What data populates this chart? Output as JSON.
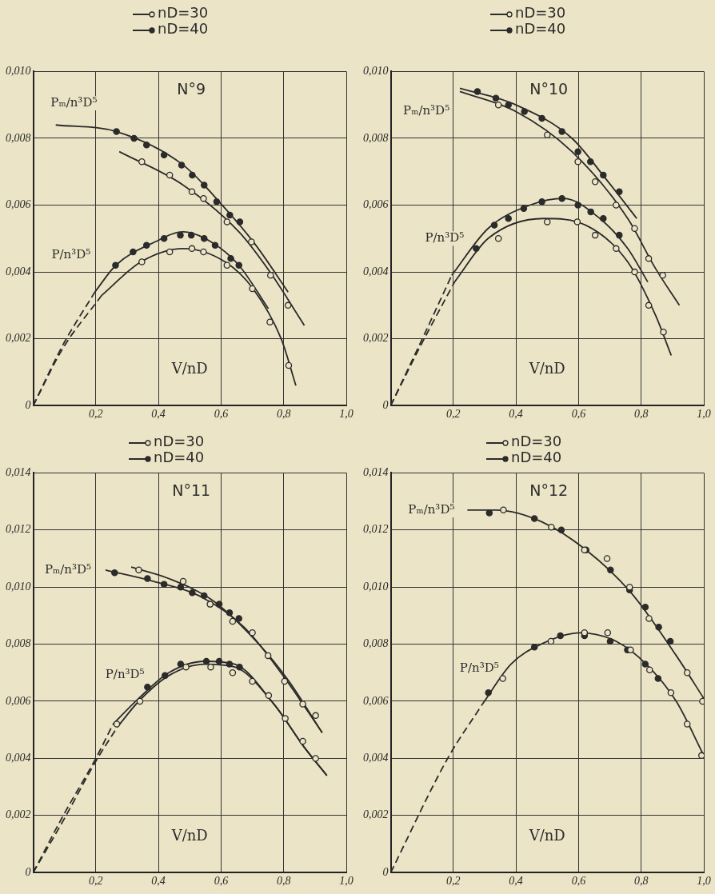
{
  "chart_data": [
    {
      "type": "line",
      "title": "N°9",
      "xlabel": "V/nD",
      "legend": "top",
      "grid": true,
      "marker": "circle",
      "xlim": [
        0,
        1
      ],
      "ylim": [
        0,
        0.01
      ],
      "xticks": [
        {
          "value": 0,
          "label": null
        },
        {
          "value": 0.2,
          "label": "0,2"
        },
        {
          "value": 0.4,
          "label": "0,4"
        },
        {
          "value": 0.6,
          "label": "0,6"
        },
        {
          "value": 0.8,
          "label": "0,8"
        },
        {
          "value": 1,
          "label": "1,0"
        }
      ],
      "yticks": [
        {
          "value": 0,
          "label": "0"
        },
        {
          "value": 0.002,
          "label": "0,002"
        },
        {
          "value": 0.004,
          "label": "0,004"
        },
        {
          "value": 0.006,
          "label": "0,006"
        },
        {
          "value": 0.008,
          "label": "0,008"
        },
        {
          "value": 0.01,
          "label": "0,010"
        }
      ],
      "annotations": [
        "Pₘ/n³D⁵",
        "P/n³D⁵"
      ],
      "series": [
        {
          "type": "scatter",
          "name": "nD=30",
          "color": "#2b2b2b",
          "x": [
            0.347,
            0.436,
            0.507,
            0.544,
            0.619,
            0.697,
            0.758,
            0.814,
            0.347,
            0.436,
            0.507,
            0.544,
            0.619,
            0.7,
            0.756,
            0.816
          ],
          "values": [
            0.0073,
            0.0069,
            0.0064,
            0.0062,
            0.0055,
            0.0049,
            0.0039,
            0.003,
            0.0043,
            0.0046,
            0.0047,
            0.0046,
            0.0042,
            0.0035,
            0.0025,
            0.0012
          ]
        },
        {
          "type": "scatter",
          "name": "nD=40",
          "color": "#2b2b2b",
          "x": [
            0.266,
            0.322,
            0.362,
            0.418,
            0.474,
            0.508,
            0.546,
            0.586,
            0.628,
            0.66,
            0.263,
            0.319,
            0.362,
            0.418,
            0.47,
            0.505,
            0.546,
            0.581,
            0.631,
            0.657
          ],
          "values": [
            0.0082,
            0.008,
            0.0078,
            0.0075,
            0.0072,
            0.0069,
            0.0066,
            0.0061,
            0.0057,
            0.0055,
            0.0042,
            0.0046,
            0.0048,
            0.005,
            0.0051,
            0.0051,
            0.005,
            0.0048,
            0.0044,
            0.0042
          ]
        },
        {
          "type": "line",
          "color": "#2b2b2b",
          "marker": "none",
          "line_style": "solid",
          "x": [
            0.072,
            0.266,
            0.479,
            0.613,
            0.711,
            0.814
          ],
          "values": [
            0.0084,
            0.0082,
            0.0072,
            0.0059,
            0.0048,
            0.0034
          ]
        },
        {
          "type": "line",
          "color": "#2b2b2b",
          "marker": "none",
          "line_style": "solid",
          "x": [
            0.275,
            0.479,
            0.657,
            0.756,
            0.866
          ],
          "values": [
            0.0076,
            0.0066,
            0.0052,
            0.004,
            0.0024
          ]
        },
        {
          "type": "line",
          "color": "#2b2b2b",
          "marker": "none",
          "line_style": "solid",
          "x": [
            0.197,
            0.264,
            0.389,
            0.479,
            0.568,
            0.657,
            0.751
          ],
          "values": [
            0.0034,
            0.0042,
            0.0049,
            0.0052,
            0.0049,
            0.0042,
            0.0029
          ]
        },
        {
          "type": "line",
          "color": "#2b2b2b",
          "marker": "none",
          "line_style": "dashed",
          "x": [
            0,
            0.094,
            0.197
          ],
          "values": [
            0,
            0.0018,
            0.0034
          ]
        },
        {
          "type": "line",
          "color": "#2b2b2b",
          "marker": "none",
          "line_style": "solid",
          "x": [
            0.219,
            0.344,
            0.479,
            0.613,
            0.702,
            0.792,
            0.839
          ],
          "values": [
            0.0033,
            0.0043,
            0.0047,
            0.0043,
            0.0035,
            0.002,
            0.0006
          ]
        },
        {
          "type": "line",
          "color": "#2b2b2b",
          "marker": "none",
          "line_style": "dashed",
          "x": [
            0,
            0.094,
            0.219
          ],
          "values": [
            0,
            0.0017,
            0.0033
          ]
        }
      ]
    },
    {
      "type": "line",
      "title": "N°10",
      "xlabel": "V/nD",
      "legend": "top",
      "grid": true,
      "marker": "circle",
      "xlim": [
        0,
        1
      ],
      "ylim": [
        0,
        0.01
      ],
      "xticks": [
        {
          "value": 0,
          "label": null
        },
        {
          "value": 0.2,
          "label": "0,2"
        },
        {
          "value": 0.4,
          "label": "0,4"
        },
        {
          "value": 0.6,
          "label": "0,6"
        },
        {
          "value": 0.8,
          "label": "0,8"
        },
        {
          "value": 1,
          "label": "1,0"
        }
      ],
      "yticks": [
        {
          "value": 0,
          "label": "0"
        },
        {
          "value": 0.002,
          "label": "0,002"
        },
        {
          "value": 0.004,
          "label": "0,004"
        },
        {
          "value": 0.006,
          "label": "0,006"
        },
        {
          "value": 0.008,
          "label": "0,008"
        },
        {
          "value": 0.01,
          "label": "0,010"
        }
      ],
      "annotations": [
        "Pₘ/n³D⁵",
        "P/n³D⁵"
      ],
      "series": [
        {
          "type": "scatter",
          "name": "nD=30",
          "color": "#2b2b2b",
          "x": [
            0.344,
            0.5,
            0.598,
            0.653,
            0.72,
            0.779,
            0.824,
            0.869,
            0.344,
            0.5,
            0.596,
            0.653,
            0.72,
            0.779,
            0.824,
            0.871
          ],
          "values": [
            0.009,
            0.0081,
            0.0073,
            0.0067,
            0.006,
            0.0053,
            0.0044,
            0.0039,
            0.005,
            0.0055,
            0.0055,
            0.0051,
            0.0047,
            0.004,
            0.003,
            0.0022
          ]
        },
        {
          "type": "scatter",
          "name": "nD=40",
          "color": "#2b2b2b",
          "x": [
            0.277,
            0.336,
            0.376,
            0.427,
            0.483,
            0.547,
            0.598,
            0.638,
            0.679,
            0.73,
            0.273,
            0.331,
            0.376,
            0.425,
            0.483,
            0.547,
            0.598,
            0.639,
            0.679,
            0.73
          ],
          "values": [
            0.0094,
            0.0092,
            0.009,
            0.0088,
            0.0086,
            0.0082,
            0.0076,
            0.0073,
            0.0069,
            0.0064,
            0.0047,
            0.0054,
            0.0056,
            0.0059,
            0.0061,
            0.0062,
            0.006,
            0.0058,
            0.0056,
            0.0051
          ]
        },
        {
          "type": "line",
          "color": "#2b2b2b",
          "marker": "none",
          "line_style": "solid",
          "x": [
            0.221,
            0.4,
            0.579,
            0.686,
            0.786
          ],
          "values": [
            0.0095,
            0.009,
            0.008,
            0.0068,
            0.0056
          ]
        },
        {
          "type": "line",
          "color": "#2b2b2b",
          "marker": "none",
          "line_style": "solid",
          "x": [
            0.221,
            0.4,
            0.579,
            0.757,
            0.846,
            0.922
          ],
          "values": [
            0.0094,
            0.0088,
            0.0076,
            0.0056,
            0.0041,
            0.003
          ]
        },
        {
          "type": "line",
          "color": "#2b2b2b",
          "marker": "none",
          "line_style": "solid",
          "x": [
            0.195,
            0.311,
            0.445,
            0.552,
            0.668,
            0.757,
            0.821
          ],
          "values": [
            0.0039,
            0.0053,
            0.006,
            0.0062,
            0.0056,
            0.0047,
            0.0037
          ]
        },
        {
          "type": "line",
          "color": "#2b2b2b",
          "marker": "none",
          "line_style": "dashed",
          "x": [
            0,
            0.096,
            0.195
          ],
          "values": [
            0,
            0.0019,
            0.0039
          ]
        },
        {
          "type": "line",
          "color": "#2b2b2b",
          "marker": "none",
          "line_style": "solid",
          "x": [
            0.204,
            0.311,
            0.489,
            0.623,
            0.757,
            0.846,
            0.896
          ],
          "values": [
            0.0037,
            0.005,
            0.0056,
            0.0054,
            0.0043,
            0.0027,
            0.0015
          ]
        },
        {
          "type": "line",
          "color": "#2b2b2b",
          "marker": "none",
          "line_style": "dashed",
          "x": [
            0,
            0.096,
            0.204
          ],
          "values": [
            0,
            0.0018,
            0.0037
          ]
        }
      ]
    },
    {
      "type": "line",
      "title": "N°11",
      "xlabel": "V/nD",
      "legend": "top",
      "grid": true,
      "marker": "circle",
      "xlim": [
        0,
        1
      ],
      "ylim": [
        0,
        0.014
      ],
      "xticks": [
        {
          "value": 0,
          "label": null
        },
        {
          "value": 0.2,
          "label": "0,2"
        },
        {
          "value": 0.4,
          "label": "0,4"
        },
        {
          "value": 0.6,
          "label": "0,6"
        },
        {
          "value": 0.8,
          "label": "0,8"
        },
        {
          "value": 1,
          "label": "1,0"
        }
      ],
      "yticks": [
        {
          "value": 0,
          "label": "0"
        },
        {
          "value": 0.002,
          "label": "0,002"
        },
        {
          "value": 0.004,
          "label": "0,004"
        },
        {
          "value": 0.006,
          "label": "0,006"
        },
        {
          "value": 0.008,
          "label": "0,008"
        },
        {
          "value": 0.01,
          "label": "0,010"
        },
        {
          "value": 0.012,
          "label": "0,012"
        },
        {
          "value": 0.014,
          "label": "0,014"
        }
      ],
      "annotations": [
        "Pₘ/n³D⁵",
        "P/n³D⁵"
      ],
      "series": [
        {
          "type": "scatter",
          "name": "nD=30",
          "color": "#2b2b2b",
          "x": [
            0.337,
            0.479,
            0.565,
            0.637,
            0.7,
            0.75,
            0.803,
            0.861,
            0.902,
            0.267,
            0.341,
            0.488,
            0.567,
            0.637,
            0.7,
            0.752,
            0.805,
            0.861,
            0.902
          ],
          "values": [
            0.0106,
            0.0102,
            0.0094,
            0.0088,
            0.0084,
            0.0076,
            0.0067,
            0.0059,
            0.0055,
            0.0052,
            0.006,
            0.0072,
            0.0072,
            0.007,
            0.0067,
            0.0062,
            0.0054,
            0.0046,
            0.004
          ]
        },
        {
          "type": "scatter",
          "name": "nD=40",
          "color": "#2b2b2b",
          "x": [
            0.26,
            0.365,
            0.418,
            0.471,
            0.508,
            0.546,
            0.594,
            0.627,
            0.657,
            0.365,
            0.421,
            0.471,
            0.553,
            0.594,
            0.627,
            0.659
          ],
          "values": [
            0.0105,
            0.0103,
            0.0101,
            0.01,
            0.0098,
            0.0097,
            0.0094,
            0.0091,
            0.0089,
            0.0065,
            0.0069,
            0.0073,
            0.0074,
            0.0074,
            0.0073,
            0.0072
          ]
        },
        {
          "type": "line",
          "color": "#2b2b2b",
          "marker": "none",
          "line_style": "solid",
          "x": [
            0.231,
            0.385,
            0.529,
            0.673,
            0.798,
            0.923
          ],
          "values": [
            0.0106,
            0.0102,
            0.0097,
            0.0086,
            0.0069,
            0.0049
          ]
        },
        {
          "type": "line",
          "color": "#2b2b2b",
          "marker": "none",
          "line_style": "solid",
          "x": [
            0.313,
            0.433,
            0.577,
            0.721,
            0.817,
            0.923
          ],
          "values": [
            0.0107,
            0.0103,
            0.0095,
            0.008,
            0.0067,
            0.0049
          ]
        },
        {
          "type": "line",
          "color": "#2b2b2b",
          "marker": "none",
          "line_style": "solid",
          "x": [
            0.255,
            0.337,
            0.433,
            0.548,
            0.644,
            0.769,
            0.865,
            0.938
          ],
          "values": [
            0.0052,
            0.0061,
            0.007,
            0.0074,
            0.0073,
            0.0059,
            0.0044,
            0.0034
          ]
        },
        {
          "type": "line",
          "color": "#2b2b2b",
          "marker": "none",
          "line_style": "dashed",
          "x": [
            0,
            0.096,
            0.2,
            0.255
          ],
          "values": [
            0,
            0.002,
            0.004,
            0.0052
          ]
        },
        {
          "type": "line",
          "color": "#2b2b2b",
          "marker": "none",
          "line_style": "solid",
          "x": [
            0.269,
            0.337,
            0.433,
            0.548,
            0.644,
            0.769,
            0.865,
            0.938
          ],
          "values": [
            0.0051,
            0.006,
            0.0069,
            0.0073,
            0.0072,
            0.0059,
            0.0044,
            0.0034
          ]
        },
        {
          "type": "line",
          "color": "#2b2b2b",
          "marker": "none",
          "line_style": "dashed",
          "x": [
            0,
            0.1,
            0.2,
            0.269
          ],
          "values": [
            0,
            0.0019,
            0.0039,
            0.0051
          ]
        }
      ]
    },
    {
      "type": "line",
      "title": "N°12",
      "xlabel": "V/nD",
      "legend": "top",
      "grid": true,
      "marker": "circle",
      "xlim": [
        0,
        1
      ],
      "ylim": [
        0,
        0.014
      ],
      "xticks": [
        {
          "value": 0,
          "label": null
        },
        {
          "value": 0.2,
          "label": "0,2"
        },
        {
          "value": 0.4,
          "label": "0,4"
        },
        {
          "value": 0.6,
          "label": "0,6"
        },
        {
          "value": 0.8,
          "label": "0,8"
        },
        {
          "value": 1,
          "label": "1,0"
        }
      ],
      "yticks": [
        {
          "value": 0,
          "label": "0"
        },
        {
          "value": 0.002,
          "label": "0,002"
        },
        {
          "value": 0.004,
          "label": "0,004"
        },
        {
          "value": 0.006,
          "label": "0,006"
        },
        {
          "value": 0.008,
          "label": "0,008"
        },
        {
          "value": 0.01,
          "label": "0,010"
        },
        {
          "value": 0.012,
          "label": "0,012"
        },
        {
          "value": 0.014,
          "label": "0,014"
        }
      ],
      "annotations": [
        "Pₘ/n³D⁵",
        "P/n³D⁵"
      ],
      "series": [
        {
          "type": "scatter",
          "name": "nD=30",
          "color": "#2b2b2b",
          "x": [
            0.36,
            0.513,
            0.619,
            0.691,
            0.763,
            0.825,
            0.947,
            0.996,
            0.358,
            0.512,
            0.619,
            0.693,
            0.766,
            0.827,
            0.895,
            0.947,
            0.993
          ],
          "values": [
            0.0127,
            0.0121,
            0.0113,
            0.011,
            0.01,
            0.0089,
            0.007,
            0.006,
            0.0068,
            0.0081,
            0.0084,
            0.0084,
            0.0078,
            0.0071,
            0.0063,
            0.0052,
            0.0041
          ]
        },
        {
          "type": "scatter",
          "name": "nD=40",
          "color": "#2b2b2b",
          "x": [
            0.315,
            0.459,
            0.545,
            0.624,
            0.702,
            0.763,
            0.813,
            0.856,
            0.893,
            0.312,
            0.459,
            0.542,
            0.619,
            0.701,
            0.756,
            0.813,
            0.854
          ],
          "values": [
            0.0126,
            0.0124,
            0.012,
            0.0113,
            0.0106,
            0.0099,
            0.0093,
            0.0086,
            0.0081,
            0.0063,
            0.0079,
            0.0083,
            0.0083,
            0.0081,
            0.0078,
            0.0073,
            0.0068
          ]
        },
        {
          "type": "line",
          "color": "#2b2b2b",
          "marker": "none",
          "line_style": "solid",
          "x": [
            0.245,
            0.336,
            0.48,
            0.624,
            0.768,
            0.912,
            1
          ],
          "values": [
            0.0127,
            0.0127,
            0.0123,
            0.0113,
            0.0098,
            0.0076,
            0.0061
          ]
        },
        {
          "type": "line",
          "color": "#2b2b2b",
          "marker": "none",
          "line_style": "solid",
          "x": [
            0.293,
            0.384,
            0.48,
            0.605,
            0.72,
            0.816,
            0.912,
            1
          ],
          "values": [
            0.0059,
            0.0073,
            0.008,
            0.0084,
            0.0081,
            0.0073,
            0.006,
            0.0041
          ]
        },
        {
          "type": "line",
          "color": "#2b2b2b",
          "marker": "none",
          "line_style": "dashed",
          "x": [
            0,
            0.182,
            0.293
          ],
          "values": [
            0,
            0.004,
            0.0059
          ]
        }
      ]
    }
  ]
}
